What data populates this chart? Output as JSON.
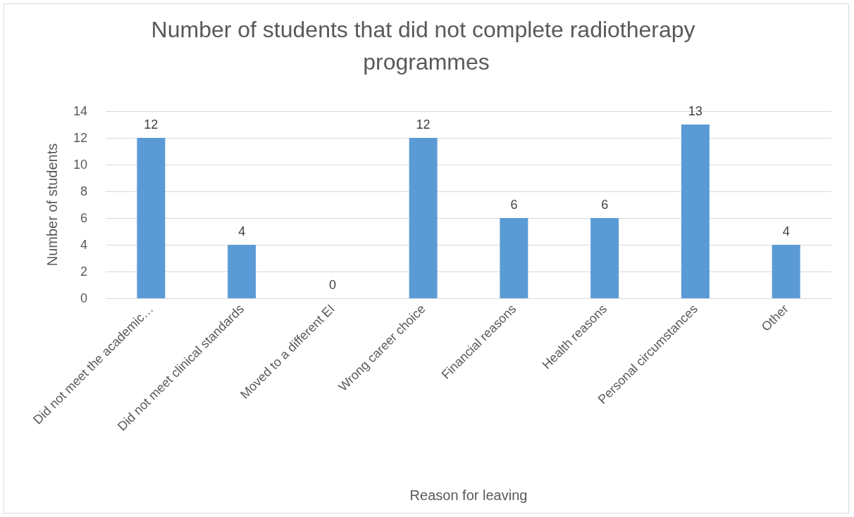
{
  "chart_data": {
    "type": "bar",
    "title": "Number of students that did not complete radiotherapy programmes",
    "xlabel": "Reason for leaving",
    "ylabel": "Number of students",
    "categories": [
      "Did not meet the academic…",
      "Did not meet clinical standards",
      "Moved to a different EI",
      "Wrong career choice",
      "Financial reasons",
      "Health reasons",
      "Personal circumstances",
      "Other"
    ],
    "values": [
      12,
      4,
      0,
      12,
      6,
      6,
      13,
      4
    ],
    "color": "#5b9bd5",
    "ylim": [
      0,
      14
    ],
    "yticks": [
      0,
      2,
      4,
      6,
      8,
      10,
      12,
      14
    ],
    "grid": "y",
    "data_labels": true
  }
}
